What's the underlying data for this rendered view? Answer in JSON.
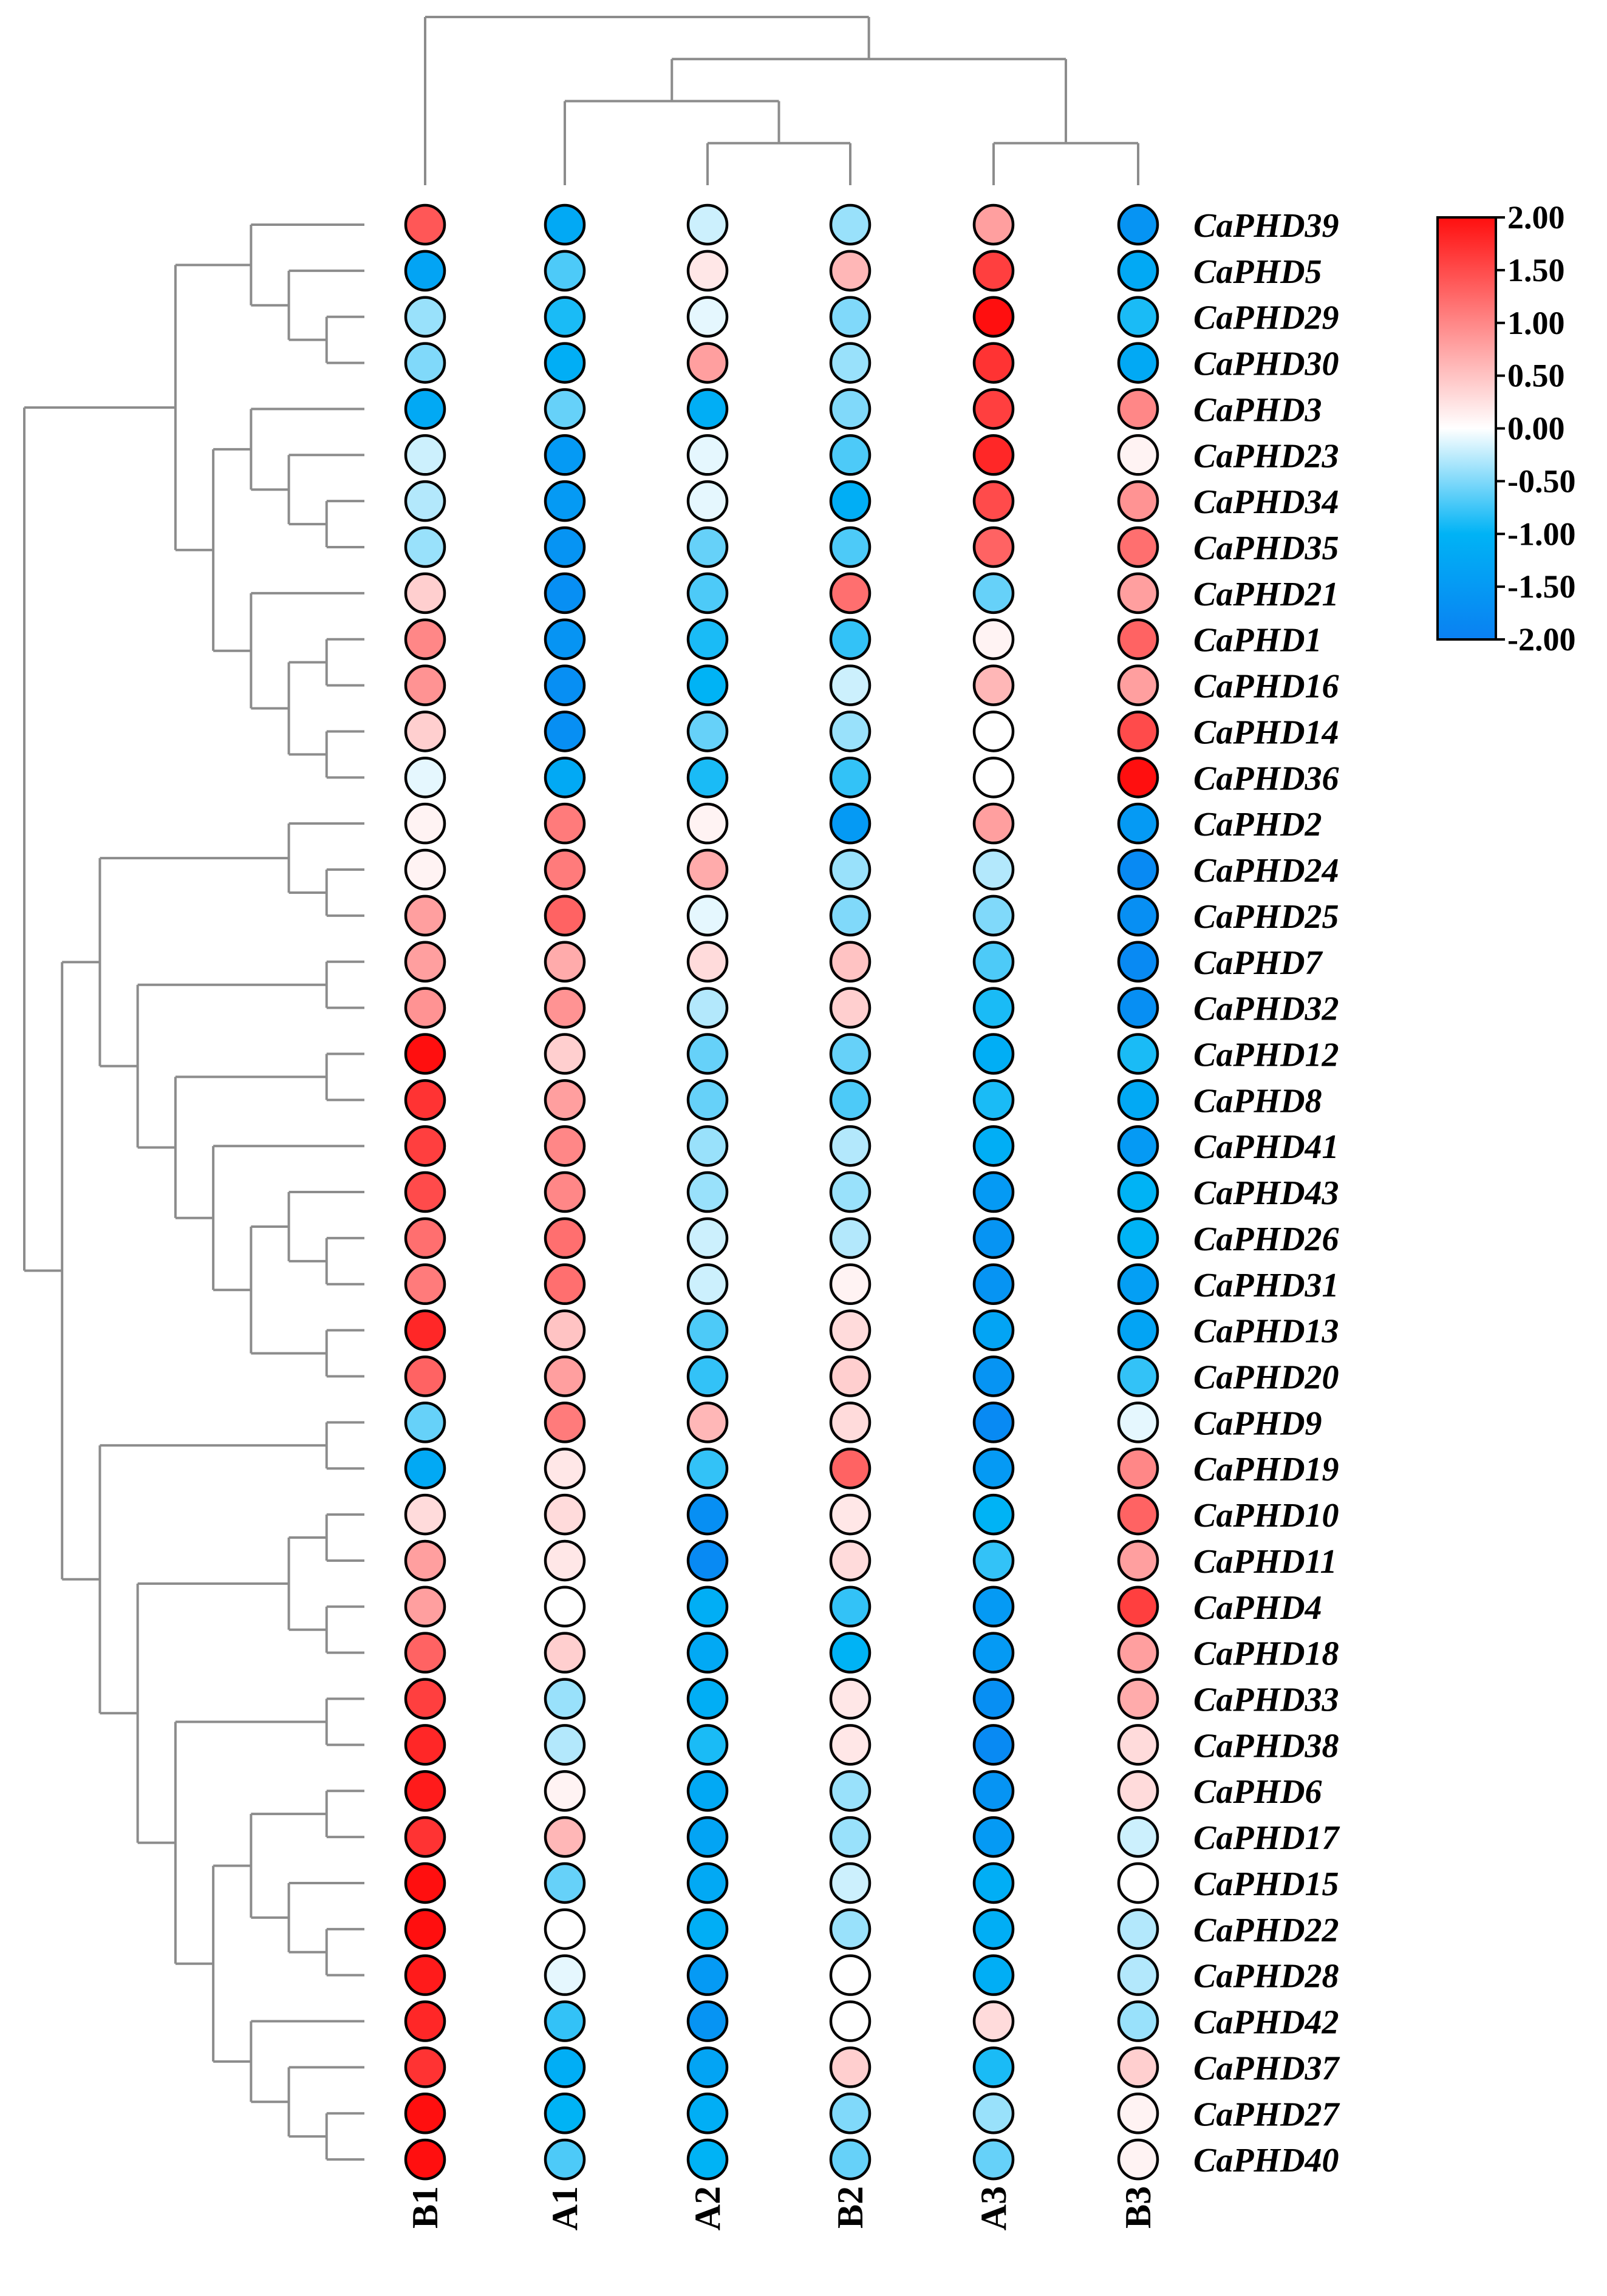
{
  "chart_data": {
    "type": "heatmap",
    "style": "dot-heatmap with hierarchical clustering",
    "columns": [
      "B1",
      "A1",
      "A2",
      "B2",
      "A3",
      "B3"
    ],
    "rows": [
      "CaPHD39",
      "CaPHD5",
      "CaPHD29",
      "CaPHD30",
      "CaPHD3",
      "CaPHD23",
      "CaPHD34",
      "CaPHD35",
      "CaPHD21",
      "CaPHD1",
      "CaPHD16",
      "CaPHD14",
      "CaPHD36",
      "CaPHD2",
      "CaPHD24",
      "CaPHD25",
      "CaPHD7",
      "CaPHD32",
      "CaPHD12",
      "CaPHD8",
      "CaPHD41",
      "CaPHD43",
      "CaPHD26",
      "CaPHD31",
      "CaPHD13",
      "CaPHD20",
      "CaPHD9",
      "CaPHD19",
      "CaPHD10",
      "CaPHD11",
      "CaPHD4",
      "CaPHD18",
      "CaPHD33",
      "CaPHD38",
      "CaPHD6",
      "CaPHD17",
      "CaPHD15",
      "CaPHD22",
      "CaPHD28",
      "CaPHD42",
      "CaPHD37",
      "CaPHD27",
      "CaPHD40"
    ],
    "values": [
      [
        1.4,
        -1.2,
        -0.2,
        -0.4,
        0.8,
        -1.6
      ],
      [
        -1.3,
        -0.7,
        0.2,
        0.6,
        1.6,
        -1.2
      ],
      [
        -0.4,
        -0.9,
        -0.1,
        -0.5,
        2.0,
        -0.9
      ],
      [
        -0.5,
        -1.1,
        0.8,
        -0.4,
        1.7,
        -1.2
      ],
      [
        -1.2,
        -0.6,
        -1.1,
        -0.5,
        1.6,
        1.0
      ],
      [
        -0.2,
        -1.5,
        -0.1,
        -0.7,
        1.8,
        0.1
      ],
      [
        -0.3,
        -1.5,
        -0.1,
        -1.1,
        1.5,
        0.9
      ],
      [
        -0.4,
        -1.6,
        -0.6,
        -0.7,
        1.3,
        1.2
      ],
      [
        0.4,
        -1.7,
        -0.7,
        1.2,
        -0.6,
        0.8
      ],
      [
        1.0,
        -1.6,
        -0.9,
        -0.8,
        0.1,
        1.3
      ],
      [
        0.9,
        -1.7,
        -1.0,
        -0.2,
        0.6,
        0.8
      ],
      [
        0.4,
        -1.7,
        -0.6,
        -0.4,
        0.0,
        1.5
      ],
      [
        -0.1,
        -1.2,
        -0.9,
        -0.8,
        0.0,
        2.0
      ],
      [
        0.1,
        1.1,
        0.1,
        -1.5,
        0.8,
        -1.5
      ],
      [
        0.1,
        1.1,
        0.7,
        -0.4,
        -0.3,
        -1.8
      ],
      [
        0.8,
        1.3,
        -0.1,
        -0.5,
        -0.5,
        -1.7
      ],
      [
        0.8,
        0.7,
        0.3,
        0.5,
        -0.7,
        -1.8
      ],
      [
        0.9,
        0.9,
        -0.3,
        0.4,
        -0.9,
        -1.7
      ],
      [
        2.0,
        0.4,
        -0.6,
        -0.6,
        -1.1,
        -0.9
      ],
      [
        1.7,
        0.8,
        -0.6,
        -0.7,
        -0.9,
        -1.2
      ],
      [
        1.6,
        1.0,
        -0.4,
        -0.3,
        -1.1,
        -1.5
      ],
      [
        1.5,
        1.0,
        -0.4,
        -0.4,
        -1.5,
        -1.0
      ],
      [
        1.2,
        1.2,
        -0.2,
        -0.3,
        -1.6,
        -1.0
      ],
      [
        1.1,
        1.2,
        -0.2,
        0.1,
        -1.6,
        -1.4
      ],
      [
        1.8,
        0.5,
        -0.7,
        0.3,
        -1.3,
        -1.3
      ],
      [
        1.3,
        0.8,
        -0.8,
        0.4,
        -1.6,
        -0.8
      ],
      [
        -0.6,
        1.1,
        0.6,
        0.3,
        -1.8,
        -0.1
      ],
      [
        -1.2,
        0.2,
        -0.8,
        1.3,
        -1.5,
        1.0
      ],
      [
        0.3,
        0.3,
        -1.7,
        0.2,
        -1.0,
        1.3
      ],
      [
        0.8,
        0.2,
        -1.8,
        0.3,
        -0.8,
        0.8
      ],
      [
        0.8,
        0.0,
        -1.1,
        -0.8,
        -1.5,
        1.6
      ],
      [
        1.3,
        0.4,
        -1.2,
        -1.0,
        -1.5,
        0.8
      ],
      [
        1.6,
        -0.4,
        -1.1,
        0.2,
        -1.7,
        0.7
      ],
      [
        1.8,
        -0.3,
        -0.9,
        0.2,
        -1.8,
        0.3
      ],
      [
        1.9,
        0.1,
        -1.2,
        -0.4,
        -1.6,
        0.3
      ],
      [
        1.7,
        0.6,
        -1.3,
        -0.4,
        -1.5,
        -0.2
      ],
      [
        2.0,
        -0.6,
        -1.2,
        -0.2,
        -1.1,
        0.0
      ],
      [
        2.0,
        0.0,
        -1.1,
        -0.4,
        -1.1,
        -0.3
      ],
      [
        1.9,
        -0.1,
        -1.5,
        0.0,
        -1.1,
        -0.3
      ],
      [
        1.8,
        -0.8,
        -1.6,
        0.0,
        0.3,
        -0.4
      ],
      [
        1.7,
        -1.1,
        -1.3,
        0.4,
        -0.9,
        0.4
      ],
      [
        2.0,
        -1.0,
        -1.1,
        -0.5,
        -0.4,
        0.1
      ],
      [
        2.0,
        -0.7,
        -1.0,
        -0.6,
        -0.6,
        0.1
      ]
    ],
    "colorbar": {
      "min": -2.0,
      "max": 2.0,
      "colors": [
        "#0a80f2",
        "#00b3f5",
        "#ffffff",
        "#ff0f0f"
      ],
      "tick_labels": [
        "2.00",
        "1.50",
        "1.00",
        "0.50",
        "0.00",
        "-0.50",
        "-1.00",
        "-1.50",
        "-2.00"
      ]
    },
    "column_dendrogram": "(B1,((A1,(A2,B2)),(A3,B3)))",
    "row_dendrogram": "(((CaPHD39,(CaPHD5,(CaPHD29,CaPHD30))),((CaPHD3,(CaPHD23,(CaPHD34,CaPHD35))),(CaPHD21,((CaPHD1,CaPHD16),(CaPHD14,CaPHD36))))),(((CaPHD2,(CaPHD24,CaPHD25)),((CaPHD7,CaPHD32),((CaPHD12,CaPHD8),(CaPHD41,((CaPHD43,(CaPHD26,CaPHD31)),(CaPHD13,CaPHD20)))))),((CaPHD9,CaPHD19),(((CaPHD10,CaPHD11),(CaPHD4,CaPHD18)),((CaPHD33,CaPHD38),(((CaPHD6,CaPHD17),(CaPHD15,(CaPHD22,CaPHD28))),(CaPHD42,(CaPHD37,(CaPHD27,CaPHD40)))))))))"
  }
}
